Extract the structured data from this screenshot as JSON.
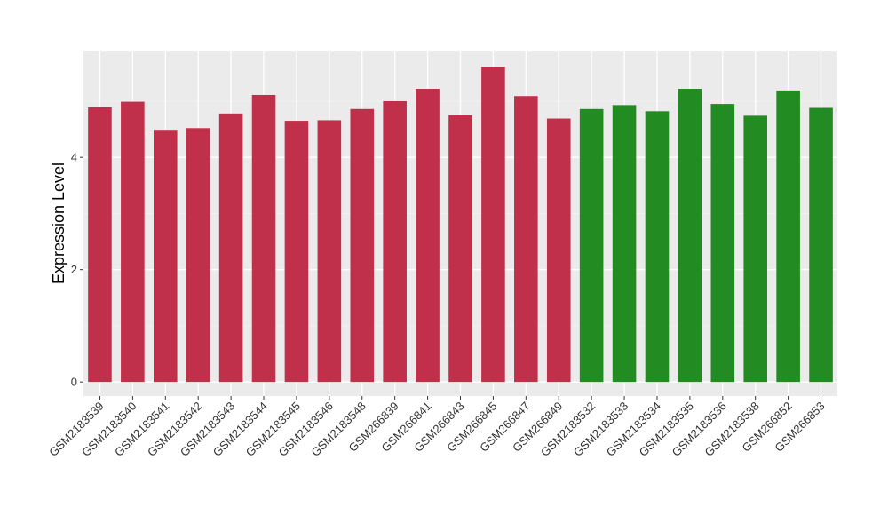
{
  "chart_data": {
    "type": "bar",
    "title": "",
    "xlabel": "",
    "ylabel": "Expression Level",
    "ylim": [
      -0.25,
      5.9
    ],
    "yticks": [
      0,
      2,
      4
    ],
    "grid": true,
    "legend": "none",
    "categories": [
      "GSM2183539",
      "GSM2183540",
      "GSM2183541",
      "GSM2183542",
      "GSM2183543",
      "GSM2183544",
      "GSM2183545",
      "GSM2183546",
      "GSM2183548",
      "GSM266839",
      "GSM266841",
      "GSM266843",
      "GSM266845",
      "GSM266847",
      "GSM266849",
      "GSM2183532",
      "GSM2183533",
      "GSM2183534",
      "GSM2183535",
      "GSM2183536",
      "GSM2183538",
      "GSM266852",
      "GSM266853"
    ],
    "values": [
      4.89,
      4.99,
      4.49,
      4.52,
      4.78,
      5.11,
      4.65,
      4.66,
      4.86,
      5.0,
      5.22,
      4.75,
      5.61,
      5.09,
      4.69,
      4.86,
      4.93,
      4.82,
      5.22,
      4.95,
      4.74,
      5.19,
      4.88
    ],
    "colors": [
      "#C0304A",
      "#C0304A",
      "#C0304A",
      "#C0304A",
      "#C0304A",
      "#C0304A",
      "#C0304A",
      "#C0304A",
      "#C0304A",
      "#C0304A",
      "#C0304A",
      "#C0304A",
      "#C0304A",
      "#C0304A",
      "#C0304A",
      "#228B22",
      "#228B22",
      "#228B22",
      "#228B22",
      "#228B22",
      "#228B22",
      "#228B22",
      "#228B22"
    ]
  }
}
